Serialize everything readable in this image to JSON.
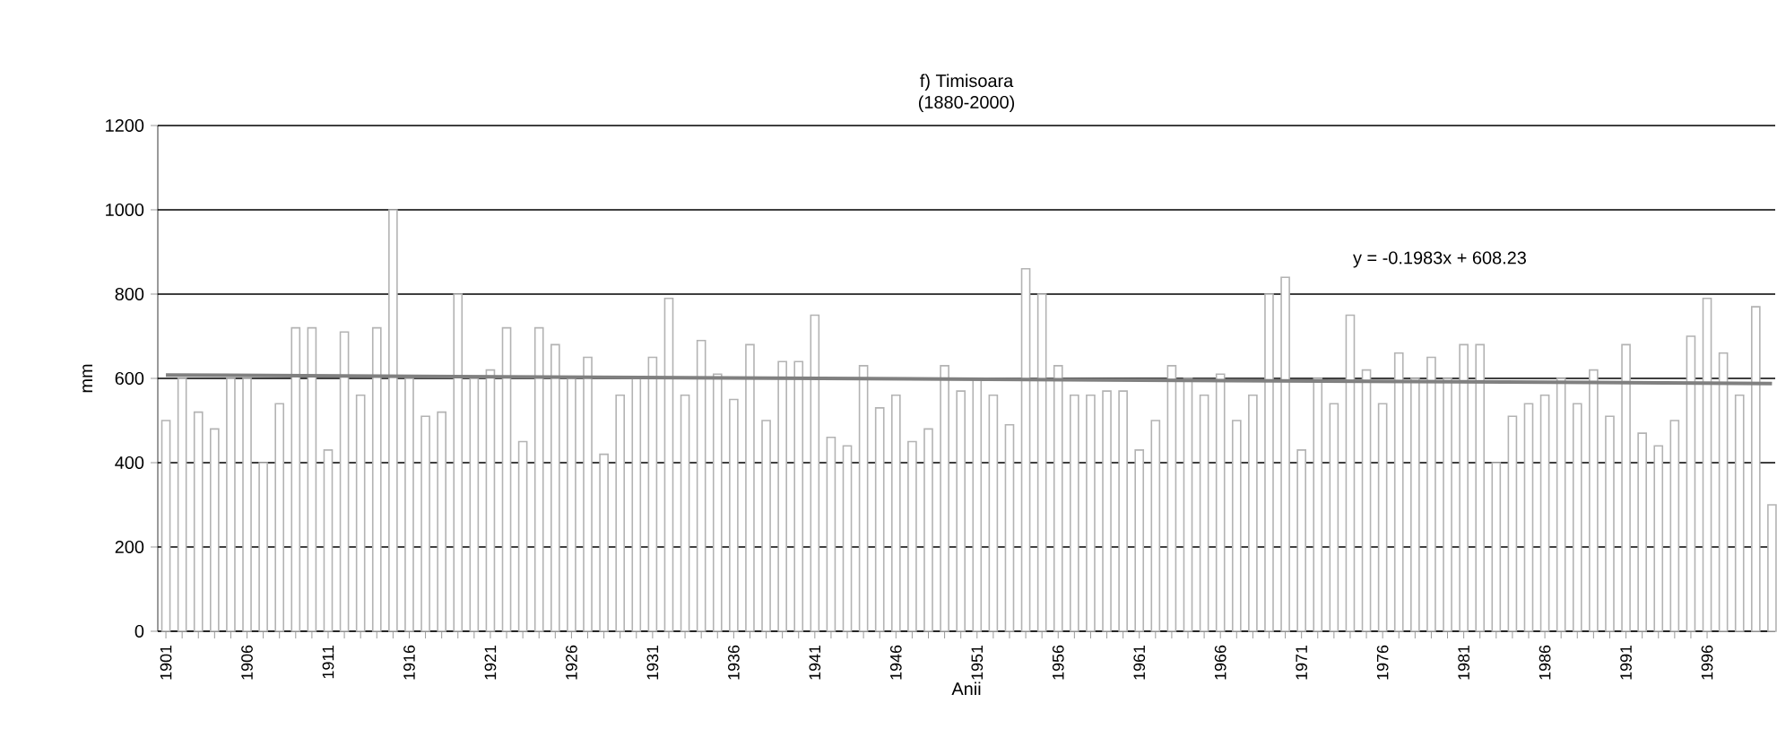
{
  "chart_data": {
    "type": "bar",
    "title": "f) Timisoara",
    "subtitle": "(1880-2000)",
    "xlabel": "Anii",
    "ylabel": "mm",
    "x": [
      1901,
      1902,
      1903,
      1904,
      1905,
      1906,
      1907,
      1908,
      1909,
      1910,
      1911,
      1912,
      1913,
      1914,
      1915,
      1916,
      1917,
      1918,
      1919,
      1920,
      1921,
      1922,
      1923,
      1924,
      1925,
      1926,
      1927,
      1928,
      1929,
      1930,
      1931,
      1932,
      1933,
      1934,
      1935,
      1936,
      1937,
      1938,
      1939,
      1940,
      1941,
      1942,
      1943,
      1944,
      1945,
      1946,
      1947,
      1948,
      1949,
      1950,
      1951,
      1952,
      1953,
      1954,
      1955,
      1956,
      1957,
      1958,
      1959,
      1960,
      1961,
      1962,
      1963,
      1964,
      1965,
      1966,
      1967,
      1968,
      1969,
      1970,
      1971,
      1972,
      1973,
      1974,
      1975,
      1976,
      1977,
      1978,
      1979,
      1980,
      1981,
      1982,
      1983,
      1984,
      1985,
      1986,
      1987,
      1988,
      1989,
      1990,
      1991,
      1992,
      1993,
      1994,
      1995,
      1996,
      1997,
      1998,
      1999,
      2000
    ],
    "series": [
      {
        "color": "#b3b3b3",
        "values": [
          500,
          600,
          520,
          480,
          600,
          600,
          400,
          540,
          720,
          720,
          430,
          710,
          560,
          720,
          1000,
          600,
          510,
          520,
          800,
          600,
          620,
          720,
          450,
          720,
          680,
          600,
          650,
          420,
          560,
          600,
          650,
          790,
          560,
          690,
          610,
          550,
          680,
          500,
          640,
          640,
          750,
          460,
          440,
          630,
          530,
          560,
          450,
          480,
          630,
          570,
          600,
          560,
          490,
          860,
          800,
          630,
          560,
          560,
          570,
          570,
          430,
          500,
          630,
          600,
          560,
          610,
          500,
          560,
          800,
          840,
          430,
          600,
          540,
          750,
          620,
          540,
          660,
          600,
          650,
          600,
          680,
          680,
          400,
          510,
          540,
          560,
          600,
          540,
          620,
          510,
          680,
          470,
          440,
          500,
          700,
          790,
          660,
          560,
          770,
          300
        ]
      },
      {
        "type": "line",
        "color": "#808080",
        "x": [
          1901,
          2000
        ],
        "values": [
          608,
          588
        ]
      }
    ],
    "xlim": [
      1900.5,
      2000.2
    ],
    "ylim": [
      0,
      1200
    ],
    "xticks": [
      1901,
      1906,
      1911,
      1916,
      1921,
      1926,
      1931,
      1936,
      1941,
      1946,
      1951,
      1956,
      1961,
      1966,
      1971,
      1976,
      1981,
      1986,
      1991,
      1996
    ],
    "yticks": [
      0,
      200,
      400,
      600,
      800,
      1000,
      1200
    ],
    "grid": "y",
    "annotations": [
      "y = -0.1983x + 608.23"
    ]
  }
}
